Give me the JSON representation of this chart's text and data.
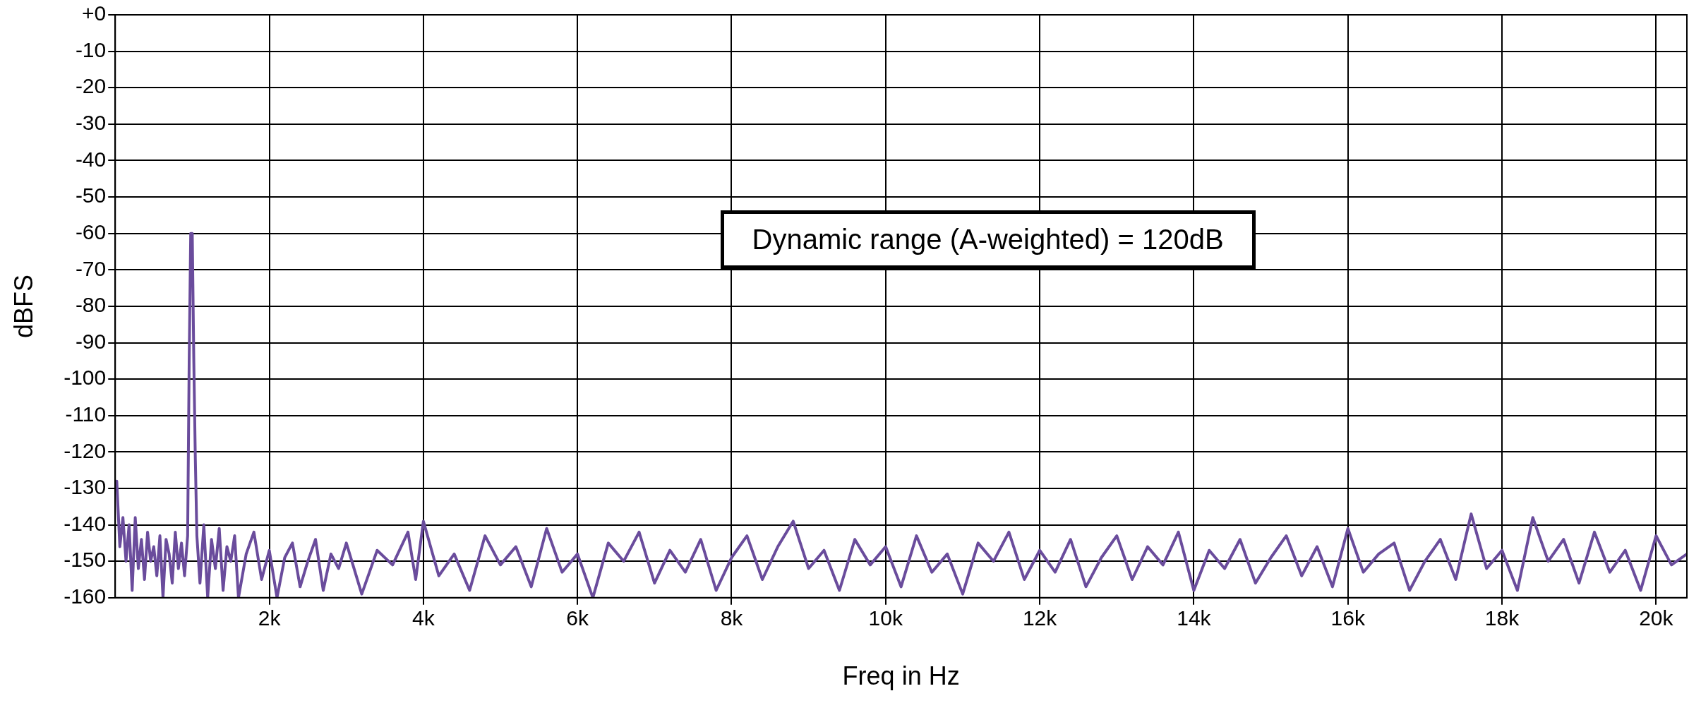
{
  "chart_data": {
    "type": "line",
    "xlabel": "Freq in Hz",
    "ylabel": "dBFS",
    "annotations": [
      "Dynamic range (A-weighted) = 120dB"
    ],
    "xlim": [
      0,
      20400
    ],
    "ylim": [
      -160,
      0
    ],
    "xticks": [
      {
        "value": 2000,
        "label": "2k"
      },
      {
        "value": 4000,
        "label": "4k"
      },
      {
        "value": 6000,
        "label": "6k"
      },
      {
        "value": 8000,
        "label": "8k"
      },
      {
        "value": 10000,
        "label": "10k"
      },
      {
        "value": 12000,
        "label": "12k"
      },
      {
        "value": 14000,
        "label": "14k"
      },
      {
        "value": 16000,
        "label": "16k"
      },
      {
        "value": 18000,
        "label": "18k"
      },
      {
        "value": 20000,
        "label": "20k"
      }
    ],
    "yticks": [
      {
        "value": 0,
        "label": "+0"
      },
      -10,
      -20,
      -30,
      -40,
      -50,
      -60,
      -70,
      -80,
      -90,
      -100,
      -110,
      -120,
      -130,
      -140,
      -150,
      -160
    ],
    "grid": true,
    "legend": false,
    "marker": "none",
    "line_style": "solid",
    "series": [
      {
        "color": "#6a4c9c",
        "x": [
          20,
          60,
          100,
          140,
          180,
          220,
          260,
          300,
          340,
          380,
          420,
          460,
          500,
          540,
          580,
          620,
          660,
          700,
          740,
          780,
          820,
          860,
          900,
          940,
          960,
          980,
          1000,
          1020,
          1040,
          1060,
          1100,
          1150,
          1200,
          1250,
          1300,
          1350,
          1400,
          1450,
          1500,
          1550,
          1600,
          1700,
          1800,
          1900,
          2000,
          2100,
          2200,
          2300,
          2400,
          2500,
          2600,
          2700,
          2800,
          2900,
          3000,
          3200,
          3400,
          3600,
          3800,
          3900,
          4000,
          4200,
          4400,
          4600,
          4800,
          5000,
          5200,
          5400,
          5600,
          5800,
          6000,
          6200,
          6400,
          6600,
          6800,
          7000,
          7200,
          7400,
          7600,
          7800,
          8000,
          8200,
          8400,
          8600,
          8800,
          9000,
          9200,
          9400,
          9600,
          9800,
          10000,
          10200,
          10400,
          10600,
          10800,
          11000,
          11200,
          11400,
          11600,
          11800,
          12000,
          12200,
          12400,
          12600,
          12800,
          13000,
          13200,
          13400,
          13600,
          13800,
          14000,
          14200,
          14400,
          14600,
          14800,
          15000,
          15200,
          15400,
          15600,
          15800,
          16000,
          16200,
          16400,
          16600,
          16800,
          17000,
          17200,
          17400,
          17600,
          17800,
          18000,
          18200,
          18400,
          18600,
          18800,
          19000,
          19200,
          19400,
          19600,
          19800,
          20000,
          20200,
          20400
        ],
        "values": [
          -128,
          -146,
          -138,
          -150,
          -140,
          -158,
          -138,
          -152,
          -144,
          -155,
          -142,
          -150,
          -146,
          -154,
          -143,
          -160,
          -144,
          -148,
          -156,
          -142,
          -152,
          -145,
          -154,
          -143,
          -95,
          -60,
          -60,
          -95,
          -122,
          -143,
          -156,
          -140,
          -160,
          -144,
          -152,
          -141,
          -158,
          -146,
          -150,
          -143,
          -160,
          -148,
          -142,
          -155,
          -147,
          -160,
          -149,
          -145,
          -157,
          -150,
          -144,
          -158,
          -148,
          -152,
          -145,
          -159,
          -147,
          -151,
          -142,
          -155,
          -139,
          -154,
          -148,
          -158,
          -143,
          -151,
          -146,
          -157,
          -141,
          -153,
          -148,
          -160,
          -145,
          -150,
          -142,
          -156,
          -147,
          -153,
          -144,
          -158,
          -149,
          -143,
          -155,
          -146,
          -139,
          -152,
          -147,
          -158,
          -144,
          -151,
          -146,
          -157,
          -143,
          -153,
          -148,
          -159,
          -145,
          -150,
          -142,
          -155,
          -147,
          -153,
          -144,
          -157,
          -149,
          -143,
          -155,
          -146,
          -151,
          -142,
          -158,
          -147,
          -152,
          -144,
          -156,
          -149,
          -143,
          -154,
          -146,
          -157,
          -141,
          -153,
          -148,
          -145,
          -158,
          -150,
          -144,
          -155,
          -137,
          -152,
          -147,
          -158,
          -138,
          -150,
          -144,
          -156,
          -142,
          -153,
          -147,
          -158,
          -143,
          -151,
          -148
        ]
      }
    ]
  }
}
